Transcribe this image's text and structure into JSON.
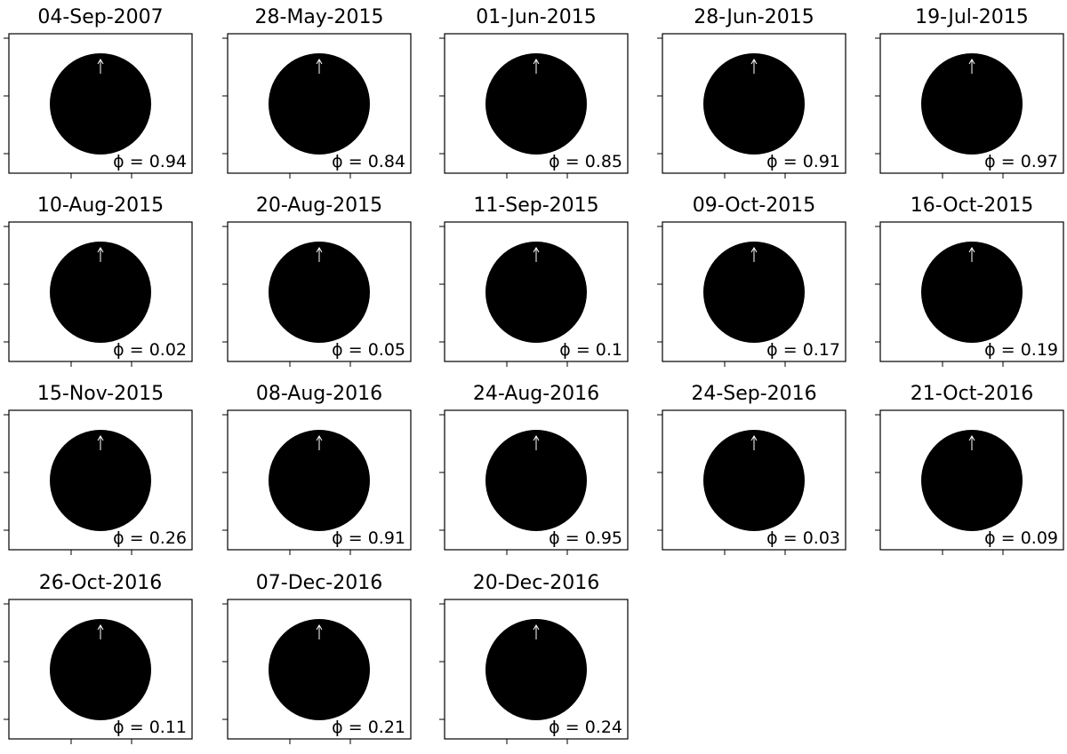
{
  "panels": [
    {
      "date": "04-Sep-2007",
      "phase": "ϕ = 0.94"
    },
    {
      "date": "28-May-2015",
      "phase": "ϕ = 0.84"
    },
    {
      "date": "01-Jun-2015",
      "phase": "ϕ = 0.85"
    },
    {
      "date": "28-Jun-2015",
      "phase": "ϕ = 0.91"
    },
    {
      "date": "19-Jul-2015",
      "phase": "ϕ = 0.97"
    },
    {
      "date": "10-Aug-2015",
      "phase": "ϕ = 0.02"
    },
    {
      "date": "20-Aug-2015",
      "phase": "ϕ = 0.05"
    },
    {
      "date": "11-Sep-2015",
      "phase": "ϕ = 0.1"
    },
    {
      "date": "09-Oct-2015",
      "phase": "ϕ = 0.17"
    },
    {
      "date": "16-Oct-2015",
      "phase": "ϕ = 0.19"
    },
    {
      "date": "15-Nov-2015",
      "phase": "ϕ = 0.26"
    },
    {
      "date": "08-Aug-2016",
      "phase": "ϕ = 0.91"
    },
    {
      "date": "24-Aug-2016",
      "phase": "ϕ = 0.95"
    },
    {
      "date": "24-Sep-2016",
      "phase": "ϕ = 0.03"
    },
    {
      "date": "21-Oct-2016",
      "phase": "ϕ = 0.09"
    },
    {
      "date": "26-Oct-2016",
      "phase": "ϕ = 0.11"
    },
    {
      "date": "07-Dec-2016",
      "phase": "ϕ = 0.21"
    },
    {
      "date": "20-Dec-2016",
      "phase": "ϕ = 0.24"
    }
  ]
}
